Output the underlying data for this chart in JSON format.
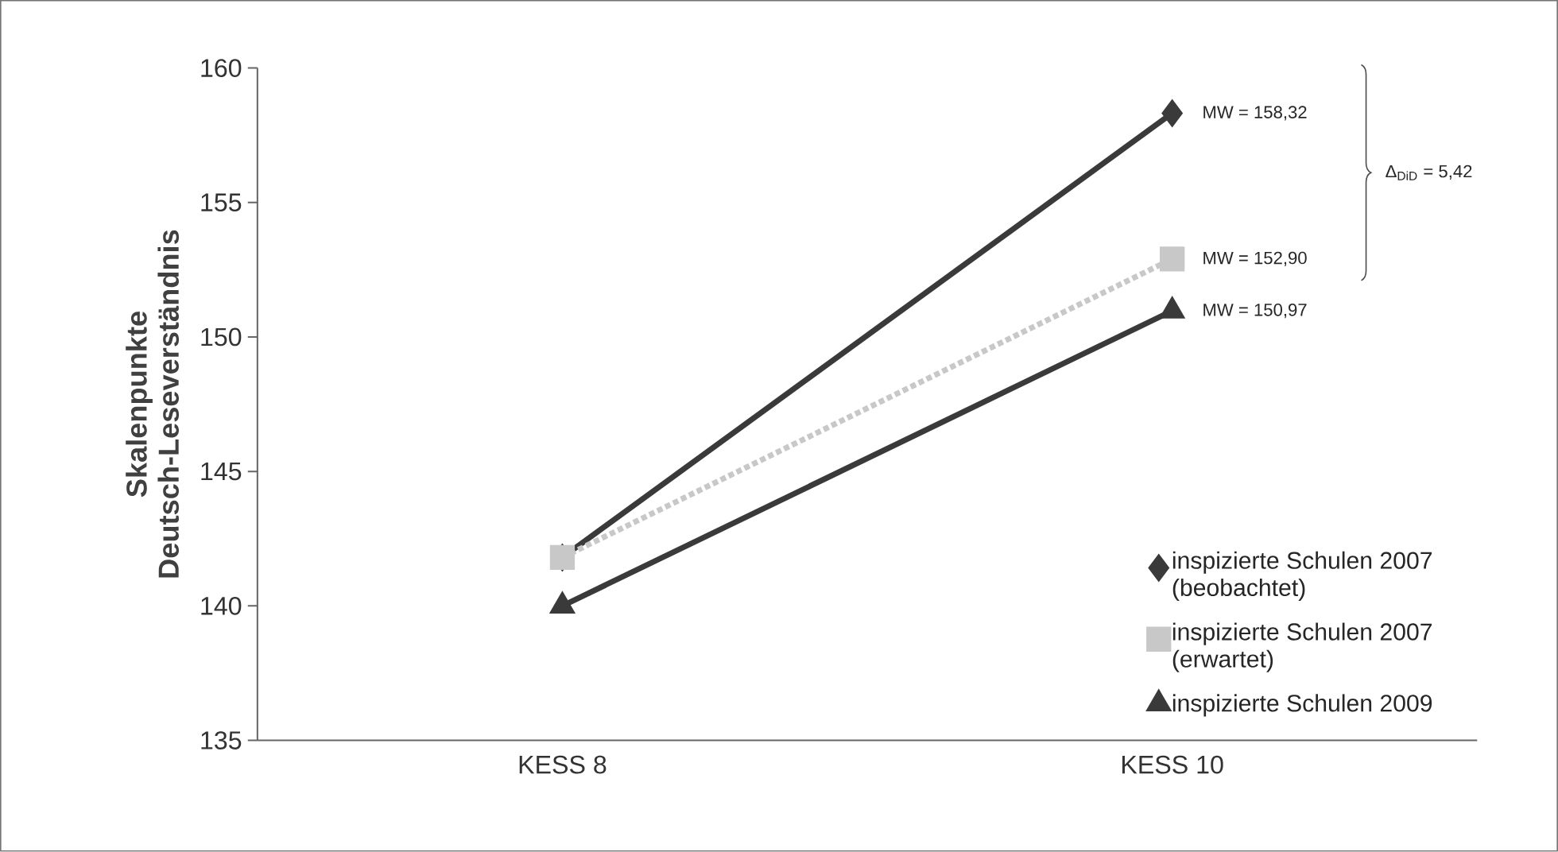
{
  "chart_data": {
    "type": "line",
    "ylabel": "Skalenpunkte\nDeutsch-Leseverständnis",
    "categories": [
      "KESS 8",
      "KESS 10"
    ],
    "series": [
      {
        "name": "inspizierte Schulen 2007 (beobachtet)",
        "color": "#3a3a3a",
        "values": [
          141.8,
          158.32
        ],
        "marker": "diamond",
        "line_style": "solid"
      },
      {
        "name": "inspizierte Schulen 2007 (erwartet)",
        "color": "#c8c8c8",
        "values": [
          141.8,
          152.9
        ],
        "marker": "square",
        "line_style": "dotted"
      },
      {
        "name": "inspizierte Schulen 2009",
        "color": "#3a3a3a",
        "values": [
          140.0,
          150.97
        ],
        "marker": "triangle",
        "line_style": "solid"
      }
    ],
    "ylim": [
      135,
      160
    ],
    "yticks": [
      135,
      140,
      145,
      150,
      155,
      160
    ],
    "legend": "bottom right",
    "grid": false,
    "annotations": [
      {
        "text": "MW = 158,32",
        "x": "KESS 10",
        "y": 158.32
      },
      {
        "text": "MW = 152,90",
        "x": "KESS 10",
        "y": 152.9
      },
      {
        "text": "MW = 150,97",
        "x": "KESS 10",
        "y": 150.97
      },
      "Δ$_{DiD}$ = 5,42"
    ]
  }
}
